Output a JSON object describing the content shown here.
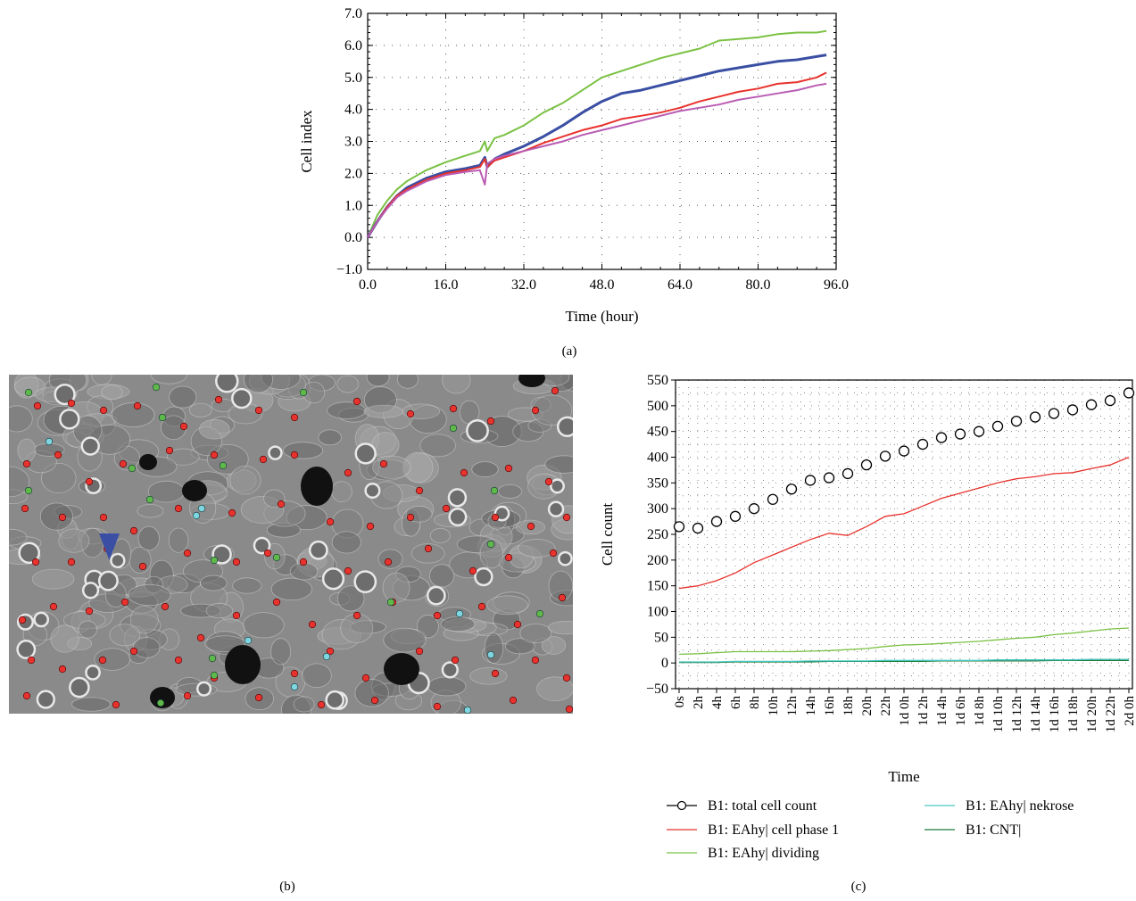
{
  "captions": {
    "a": "(a)",
    "b": "(b)",
    "c": "(c)"
  },
  "chart_data": [
    {
      "panel": "(a)",
      "type": "line",
      "xlabel": "Time (hour)",
      "ylabel": "Cell index",
      "xlim": [
        0,
        96
      ],
      "ylim": [
        -1.0,
        7.0
      ],
      "xticks": [
        0,
        16,
        32,
        48,
        64,
        80,
        96
      ],
      "xtick_labels": [
        "0.0",
        "16.0",
        "32.0",
        "48.0",
        "64.0",
        "80.0",
        "96.0"
      ],
      "yticks": [
        -1,
        0,
        1,
        2,
        3,
        4,
        5,
        6,
        7
      ],
      "ytick_labels": [
        "−1.0",
        "0.0",
        "1.0",
        "2.0",
        "3.0",
        "4.0",
        "5.0",
        "6.0",
        "7.0"
      ],
      "grid": "dotted",
      "series": [
        {
          "color": "#7ac143",
          "x": [
            0,
            2,
            4,
            6,
            8,
            12,
            16,
            20,
            23,
            24,
            24.5,
            26,
            28,
            32,
            36,
            40,
            44,
            48,
            52,
            56,
            60,
            64,
            68,
            72,
            76,
            80,
            84,
            88,
            92,
            94
          ],
          "y": [
            0,
            0.7,
            1.15,
            1.5,
            1.75,
            2.1,
            2.35,
            2.55,
            2.7,
            3.0,
            2.7,
            3.1,
            3.2,
            3.5,
            3.9,
            4.2,
            4.6,
            5.0,
            5.2,
            5.4,
            5.6,
            5.75,
            5.9,
            6.15,
            6.2,
            6.25,
            6.35,
            6.4,
            6.4,
            6.45
          ]
        },
        {
          "color": "#3a4fa3",
          "x": [
            0,
            2,
            4,
            6,
            8,
            12,
            16,
            20,
            23,
            24,
            24.5,
            26,
            28,
            32,
            36,
            40,
            44,
            48,
            52,
            56,
            60,
            64,
            68,
            72,
            76,
            80,
            84,
            88,
            92,
            94
          ],
          "y": [
            0,
            0.5,
            0.95,
            1.3,
            1.55,
            1.85,
            2.05,
            2.15,
            2.25,
            2.5,
            2.2,
            2.45,
            2.6,
            2.85,
            3.15,
            3.5,
            3.9,
            4.25,
            4.5,
            4.6,
            4.75,
            4.9,
            5.05,
            5.2,
            5.3,
            5.4,
            5.5,
            5.55,
            5.65,
            5.7
          ]
        },
        {
          "color": "#e8322d",
          "x": [
            0,
            2,
            4,
            6,
            8,
            12,
            16,
            20,
            23,
            24,
            24.5,
            26,
            28,
            32,
            36,
            40,
            44,
            48,
            52,
            56,
            60,
            64,
            68,
            72,
            76,
            80,
            84,
            88,
            92,
            94
          ],
          "y": [
            0,
            0.5,
            0.95,
            1.3,
            1.5,
            1.8,
            2.0,
            2.1,
            2.2,
            2.45,
            2.2,
            2.4,
            2.5,
            2.7,
            2.95,
            3.15,
            3.35,
            3.5,
            3.7,
            3.8,
            3.9,
            4.05,
            4.25,
            4.4,
            4.55,
            4.65,
            4.8,
            4.85,
            5.0,
            5.15
          ]
        },
        {
          "color": "#b95cb3",
          "x": [
            0,
            2,
            4,
            6,
            8,
            12,
            16,
            20,
            23,
            24,
            24.5,
            26,
            28,
            32,
            36,
            40,
            44,
            48,
            52,
            56,
            60,
            64,
            68,
            72,
            76,
            80,
            84,
            88,
            92,
            94
          ],
          "y": [
            0,
            0.5,
            0.9,
            1.25,
            1.45,
            1.75,
            1.95,
            2.05,
            2.1,
            1.65,
            2.3,
            2.45,
            2.55,
            2.7,
            2.85,
            3.0,
            3.2,
            3.35,
            3.5,
            3.65,
            3.8,
            3.95,
            4.05,
            4.15,
            4.3,
            4.4,
            4.5,
            4.6,
            4.75,
            4.8
          ]
        }
      ]
    },
    {
      "panel": "(c)",
      "type": "line",
      "xlabel": "Time",
      "ylabel": "Cell count",
      "ylim": [
        -50,
        550
      ],
      "yticks": [
        -50,
        0,
        50,
        100,
        150,
        200,
        250,
        300,
        350,
        400,
        450,
        500,
        550
      ],
      "categories": [
        "0s",
        "2h",
        "4h",
        "6h",
        "8h",
        "10h",
        "12h",
        "14h",
        "16h",
        "18h",
        "20h",
        "22h",
        "1d 0h",
        "1d 2h",
        "1d 4h",
        "1d 6h",
        "1d 8h",
        "1d 10h",
        "1d 12h",
        "1d 14h",
        "1d 16h",
        "1d 18h",
        "1d 20h",
        "1d 22h",
        "2d 0h"
      ],
      "grid": "dotted",
      "legend": "bottom",
      "series": [
        {
          "name": "B1: total cell count",
          "color": "#000000",
          "marker": "circle",
          "values": [
            265,
            262,
            275,
            285,
            300,
            318,
            338,
            355,
            360,
            368,
            385,
            402,
            412,
            425,
            438,
            445,
            450,
            460,
            470,
            478,
            485,
            492,
            502,
            510,
            525
          ]
        },
        {
          "name": "B1: EAhy| cell phase 1",
          "color": "#e8322d",
          "values": [
            145,
            150,
            160,
            175,
            195,
            210,
            225,
            240,
            252,
            248,
            265,
            285,
            290,
            305,
            320,
            330,
            340,
            350,
            358,
            362,
            368,
            370,
            378,
            385,
            400
          ]
        },
        {
          "name": "B1: EAhy| dividing",
          "color": "#7ac143",
          "values": [
            17,
            18,
            20,
            22,
            22,
            22,
            22,
            23,
            24,
            26,
            28,
            32,
            35,
            36,
            38,
            40,
            42,
            45,
            48,
            50,
            55,
            58,
            62,
            66,
            68
          ]
        },
        {
          "name": "B1: EAhy| nekrose",
          "color": "#46c8c3",
          "values": [
            2,
            2,
            2,
            3,
            3,
            3,
            3,
            4,
            4,
            4,
            4,
            5,
            5,
            5,
            5,
            5,
            5,
            6,
            6,
            6,
            6,
            6,
            7,
            7,
            7
          ]
        },
        {
          "name": "B1: CNT|",
          "color": "#1f7a3a",
          "values": [
            1,
            1,
            1,
            2,
            2,
            2,
            2,
            2,
            3,
            3,
            3,
            3,
            3,
            3,
            4,
            4,
            4,
            4,
            4,
            4,
            5,
            5,
            5,
            5,
            5
          ]
        }
      ]
    }
  ],
  "photo": {
    "background_color": "#8a8a8a",
    "marker_colors": {
      "red": "#e8322d",
      "green": "#5fb94a",
      "cyan": "#7fd6e0",
      "arrow": "#3a4fa3"
    },
    "description_icon": "microscopy-image"
  }
}
